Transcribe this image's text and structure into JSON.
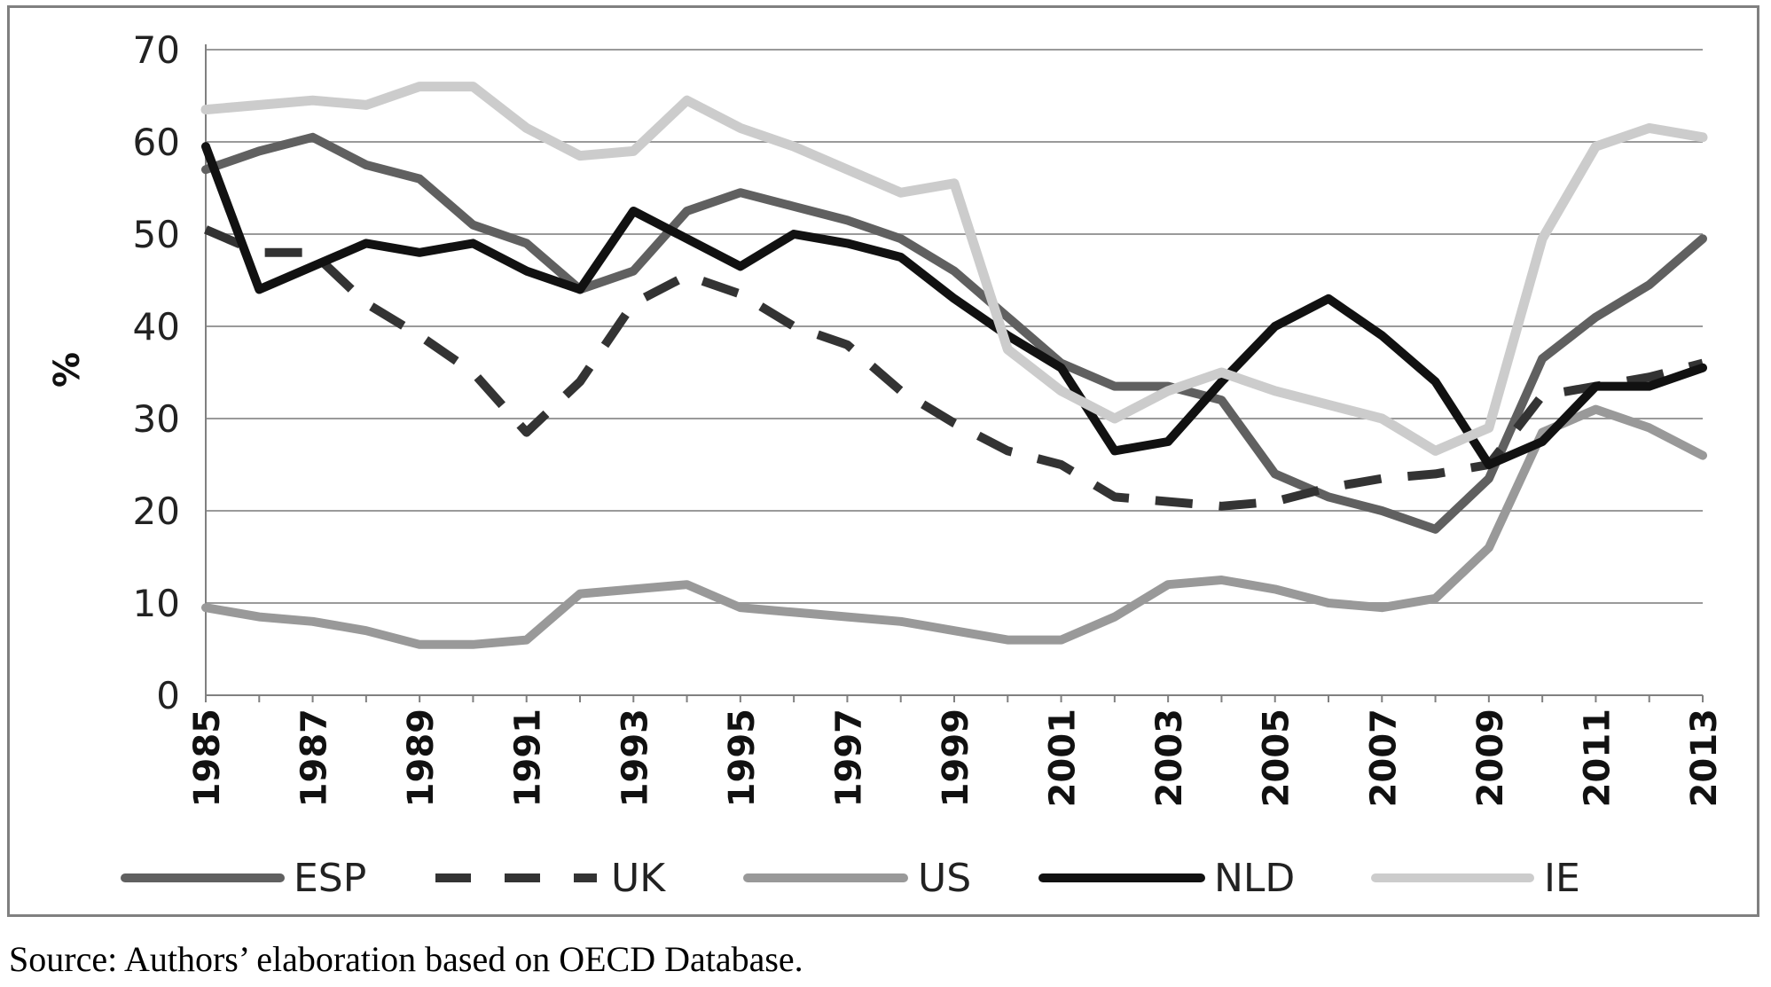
{
  "chart_data": {
    "type": "line",
    "title": "",
    "xlabel": "",
    "ylabel": "%",
    "ylim": [
      0,
      70
    ],
    "yticks": [
      0,
      10,
      20,
      30,
      40,
      50,
      60,
      70
    ],
    "x": [
      1985,
      1986,
      1987,
      1988,
      1989,
      1990,
      1991,
      1992,
      1993,
      1994,
      1995,
      1996,
      1997,
      1998,
      1999,
      2000,
      2001,
      2002,
      2003,
      2004,
      2005,
      2006,
      2007,
      2008,
      2009,
      2010,
      2011,
      2012,
      2013
    ],
    "xtick_labels": [
      "1985",
      "1987",
      "1989",
      "1991",
      "1993",
      "1995",
      "1997",
      "1999",
      "2001",
      "2003",
      "2005",
      "2007",
      "2009",
      "2011",
      "2013"
    ],
    "grid": "horizontal",
    "legend_position": "bottom",
    "series": [
      {
        "name": "ESP",
        "color": "#606060",
        "style": "solid",
        "values": [
          57,
          59,
          60.5,
          57.5,
          56,
          51,
          49,
          44,
          46,
          52.5,
          54.5,
          53,
          51.5,
          49.5,
          46,
          41,
          36,
          33.5,
          33.5,
          32,
          24,
          21.5,
          20,
          18,
          23.5,
          36.5,
          41,
          44.5,
          49.5
        ]
      },
      {
        "name": "UK",
        "color": "#333333",
        "style": "dashed",
        "values": [
          50.5,
          48,
          48,
          42.5,
          39,
          35,
          28.5,
          34,
          42.5,
          45.5,
          43.5,
          40,
          38,
          33,
          29.5,
          26.5,
          25,
          21.5,
          21,
          20.5,
          21,
          22.5,
          23.5,
          24,
          25,
          32.5,
          33.5,
          34.5,
          36
        ]
      },
      {
        "name": "US",
        "color": "#999999",
        "style": "solid",
        "values": [
          9.5,
          8.5,
          8,
          7,
          5.5,
          5.5,
          6,
          11,
          11.5,
          12,
          9.5,
          9,
          8.5,
          8,
          7,
          6,
          6,
          8.5,
          12,
          12.5,
          11.5,
          10,
          9.5,
          10.5,
          16,
          28.5,
          31,
          29,
          26
        ]
      },
      {
        "name": "NLD",
        "color": "#111111",
        "style": "solid",
        "values": [
          59.5,
          44,
          46.5,
          49,
          48,
          49,
          46,
          44,
          52.5,
          49.5,
          46.5,
          50,
          49,
          47.5,
          43,
          39,
          35.5,
          26.5,
          27.5,
          34,
          40,
          43,
          39,
          34,
          25,
          27.5,
          33.5,
          33.5,
          35.5
        ]
      },
      {
        "name": "IE",
        "color": "#cccccc",
        "style": "solid",
        "values": [
          63.5,
          64,
          64.5,
          64,
          66,
          66,
          61.5,
          58.5,
          59,
          64.5,
          61.5,
          59.5,
          57,
          54.5,
          55.5,
          37.5,
          33,
          30,
          33,
          35,
          33,
          31.5,
          30,
          26.5,
          29,
          49.5,
          59.5,
          61.5,
          60.5
        ]
      }
    ]
  },
  "source_note": "Source: Authors’ elaboration based on OECD Database."
}
